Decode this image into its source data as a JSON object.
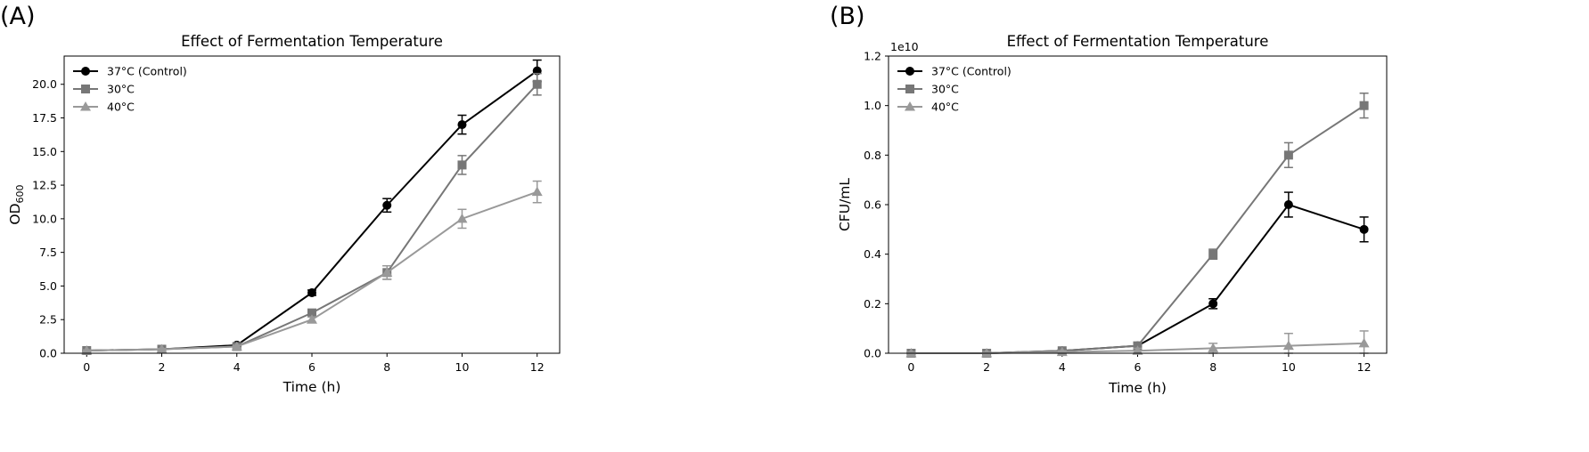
{
  "chart_data": [
    {
      "type": "line",
      "panel_label": "(A)",
      "title": "Effect of Fermentation Temperature",
      "xlabel": "Time (h)",
      "ylabel": "OD",
      "ylabel_subscript": "600",
      "xlim": [
        -0.6,
        12.6
      ],
      "ylim": [
        0,
        22.1
      ],
      "xticks": [
        0,
        2,
        4,
        6,
        8,
        10,
        12
      ],
      "yticks": [
        0,
        2.5,
        5,
        7.5,
        10,
        12.5,
        15,
        17.5,
        20
      ],
      "ytick_labels": [
        "0.0",
        "2.5",
        "5.0",
        "7.5",
        "10.0",
        "12.5",
        "15.0",
        "17.5",
        "20.0"
      ],
      "offset_text": "",
      "legend_position": "upper-left",
      "grid": false,
      "series": [
        {
          "name": "37°C (Control)",
          "color": "#000000",
          "marker": "circle",
          "x": [
            0,
            2,
            4,
            6,
            8,
            10,
            12
          ],
          "y": [
            0.2,
            0.3,
            0.6,
            4.5,
            11.0,
            17.0,
            21.0
          ],
          "err": [
            0.05,
            0.05,
            0.1,
            0.2,
            0.5,
            0.7,
            0.8
          ]
        },
        {
          "name": "30°C",
          "color": "#777777",
          "marker": "square",
          "x": [
            0,
            2,
            4,
            6,
            8,
            10,
            12
          ],
          "y": [
            0.2,
            0.3,
            0.5,
            3.0,
            6.0,
            14.0,
            20.0
          ],
          "err": [
            0.05,
            0.05,
            0.1,
            0.2,
            0.5,
            0.7,
            0.8
          ]
        },
        {
          "name": "40°C",
          "color": "#999999",
          "marker": "triangle",
          "x": [
            0,
            2,
            4,
            6,
            8,
            10,
            12
          ],
          "y": [
            0.2,
            0.3,
            0.5,
            2.5,
            6.0,
            10.0,
            12.0
          ],
          "err": [
            0.05,
            0.05,
            0.1,
            0.2,
            0.5,
            0.7,
            0.8
          ]
        }
      ]
    },
    {
      "type": "line",
      "panel_label": "(B)",
      "title": "Effect of Fermentation Temperature",
      "xlabel": "Time (h)",
      "ylabel": "CFU/mL",
      "ylabel_subscript": "",
      "xlim": [
        -0.6,
        12.6
      ],
      "ylim": [
        0,
        1.2
      ],
      "xticks": [
        0,
        2,
        4,
        6,
        8,
        10,
        12
      ],
      "yticks": [
        0,
        0.2,
        0.4,
        0.6,
        0.8,
        1.0,
        1.2
      ],
      "ytick_labels": [
        "0.0",
        "0.2",
        "0.4",
        "0.6",
        "0.8",
        "1.0",
        "1.2"
      ],
      "offset_text": "1e10",
      "legend_position": "upper-left",
      "grid": false,
      "series": [
        {
          "name": "37°C (Control)",
          "color": "#000000",
          "marker": "circle",
          "x": [
            0,
            2,
            4,
            6,
            8,
            10,
            12
          ],
          "y": [
            0.0,
            0.0,
            0.01,
            0.03,
            0.2,
            0.6,
            0.5
          ],
          "err": [
            0.005,
            0.005,
            0.005,
            0.01,
            0.02,
            0.05,
            0.05
          ]
        },
        {
          "name": "30°C",
          "color": "#777777",
          "marker": "square",
          "x": [
            0,
            2,
            4,
            6,
            8,
            10,
            12
          ],
          "y": [
            0.0,
            0.0,
            0.01,
            0.03,
            0.4,
            0.8,
            1.0
          ],
          "err": [
            0.005,
            0.005,
            0.005,
            0.01,
            0.02,
            0.05,
            0.05
          ]
        },
        {
          "name": "40°C",
          "color": "#999999",
          "marker": "triangle",
          "x": [
            0,
            2,
            4,
            6,
            8,
            10,
            12
          ],
          "y": [
            0.0,
            0.0,
            0.005,
            0.01,
            0.02,
            0.03,
            0.04
          ],
          "err": [
            0.005,
            0.005,
            0.005,
            0.01,
            0.02,
            0.05,
            0.05
          ]
        }
      ]
    }
  ]
}
